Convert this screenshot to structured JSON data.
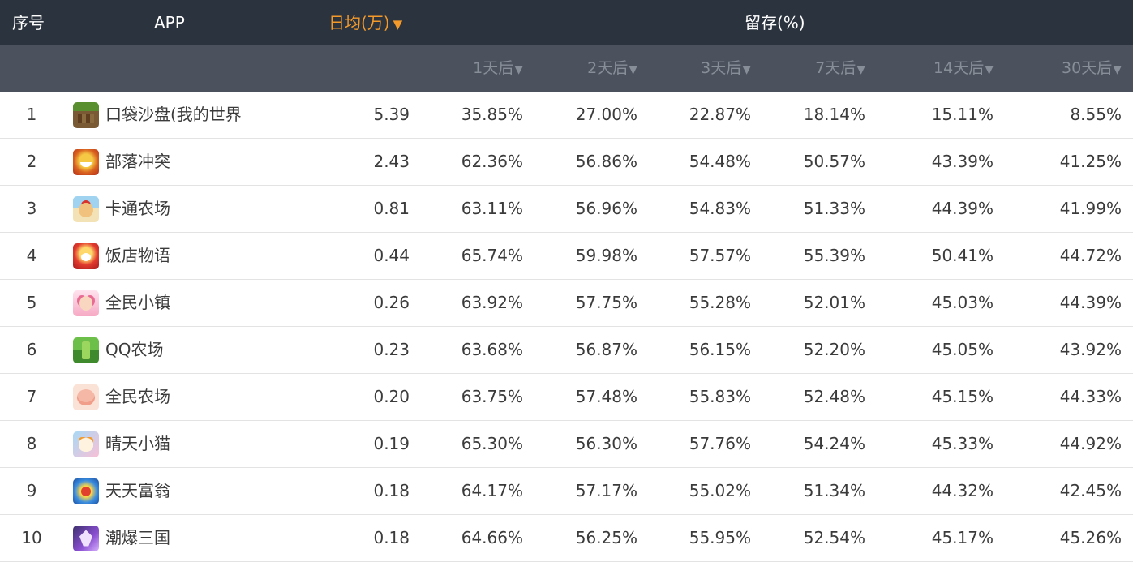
{
  "header": {
    "seq": "序号",
    "app": "APP",
    "daily": "日均(万)",
    "daily_arrow": "▼",
    "retention": "留存(%)"
  },
  "subheader": {
    "arrow": "▼",
    "cols": [
      "1天后",
      "2天后",
      "3天后",
      "7天后",
      "14天后",
      "30天后"
    ]
  },
  "rows": [
    {
      "seq": "1",
      "icon": "minecraft-icon",
      "name": "口袋沙盘(我的世界",
      "daily": "5.39",
      "r1": "35.85%",
      "r2": "27.00%",
      "r3": "22.87%",
      "r7": "18.14%",
      "r14": "15.11%",
      "r30": "8.55%"
    },
    {
      "seq": "2",
      "icon": "clash-of-clans-icon",
      "name": "部落冲突",
      "daily": "2.43",
      "r1": "62.36%",
      "r2": "56.86%",
      "r3": "54.48%",
      "r7": "50.57%",
      "r14": "43.39%",
      "r30": "41.25%"
    },
    {
      "seq": "3",
      "icon": "cartoon-farm-icon",
      "name": "卡通农场",
      "daily": "0.81",
      "r1": "63.11%",
      "r2": "56.96%",
      "r3": "54.83%",
      "r7": "51.33%",
      "r14": "44.39%",
      "r30": "41.99%"
    },
    {
      "seq": "4",
      "icon": "restaurant-story-icon",
      "name": "饭店物语",
      "daily": "0.44",
      "r1": "65.74%",
      "r2": "59.98%",
      "r3": "57.57%",
      "r7": "55.39%",
      "r14": "50.41%",
      "r30": "44.72%"
    },
    {
      "seq": "5",
      "icon": "town-icon",
      "name": "全民小镇",
      "daily": "0.26",
      "r1": "63.92%",
      "r2": "57.75%",
      "r3": "55.28%",
      "r7": "52.01%",
      "r14": "45.03%",
      "r30": "44.39%"
    },
    {
      "seq": "6",
      "icon": "qq-farm-icon",
      "name": "QQ农场",
      "daily": "0.23",
      "r1": "63.68%",
      "r2": "56.87%",
      "r3": "56.15%",
      "r7": "52.20%",
      "r14": "45.05%",
      "r30": "43.92%"
    },
    {
      "seq": "7",
      "icon": "pig-farm-icon",
      "name": "全民农场",
      "daily": "0.20",
      "r1": "63.75%",
      "r2": "57.48%",
      "r3": "55.83%",
      "r7": "52.48%",
      "r14": "45.15%",
      "r30": "44.33%"
    },
    {
      "seq": "8",
      "icon": "cat-icon",
      "name": "晴天小猫",
      "daily": "0.19",
      "r1": "65.30%",
      "r2": "56.30%",
      "r3": "57.76%",
      "r7": "54.24%",
      "r14": "45.33%",
      "r30": "44.92%"
    },
    {
      "seq": "9",
      "icon": "monopoly-icon",
      "name": "天天富翁",
      "daily": "0.18",
      "r1": "64.17%",
      "r2": "57.17%",
      "r3": "55.02%",
      "r7": "51.34%",
      "r14": "44.32%",
      "r30": "42.45%"
    },
    {
      "seq": "10",
      "icon": "three-kingdoms-icon",
      "name": "潮爆三国",
      "daily": "0.18",
      "r1": "64.66%",
      "r2": "56.25%",
      "r3": "55.95%",
      "r7": "52.54%",
      "r14": "45.17%",
      "r30": "45.26%"
    }
  ],
  "colors": {
    "header_bg": "#2b333e",
    "subheader_bg": "#4b525d",
    "sort_accent": "#f39a2b",
    "subheader_text": "#878e98"
  }
}
